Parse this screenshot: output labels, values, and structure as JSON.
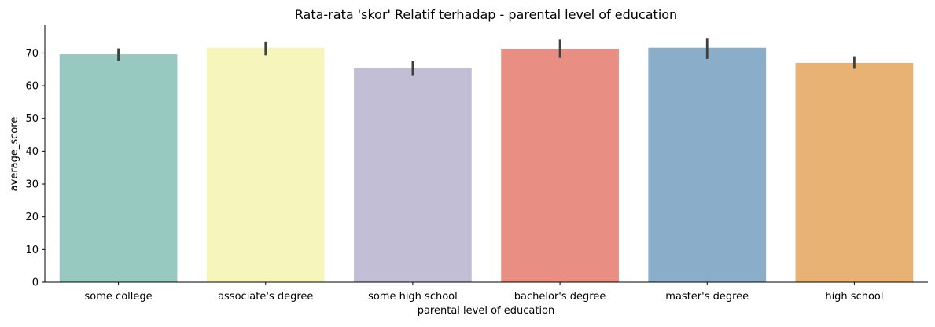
{
  "chart_data": {
    "type": "bar",
    "title": "Rata-rata 'skor' Relatif terhadap - parental level of education",
    "xlabel": "parental level of education",
    "ylabel": "average_score",
    "categories": [
      "some college",
      "associate's degree",
      "some high school",
      "bachelor's degree",
      "master's degree",
      "high school"
    ],
    "values": [
      69.6,
      71.6,
      65.3,
      71.3,
      71.6,
      67.0
    ],
    "error_low": [
      67.7,
      69.3,
      63.0,
      68.5,
      68.2,
      65.2
    ],
    "error_high": [
      71.4,
      73.5,
      67.7,
      74.1,
      74.6,
      69.0
    ],
    "colors": [
      "#97c9c1",
      "#f6f6bc",
      "#c1bed5",
      "#e98e83",
      "#8aaec9",
      "#e9b275"
    ],
    "ylim": [
      0,
      78.5
    ],
    "yticks": [
      0,
      10,
      20,
      30,
      40,
      50,
      60,
      70
    ],
    "grid": false,
    "legend": false
  }
}
